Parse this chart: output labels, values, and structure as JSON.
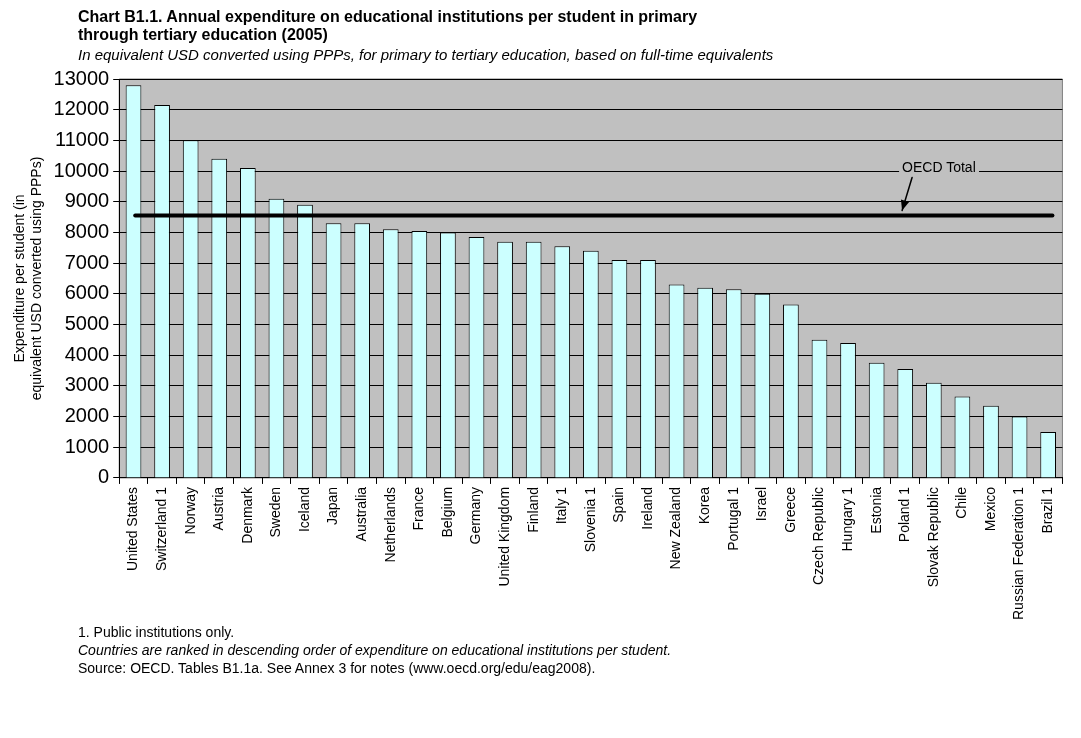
{
  "chart_data": {
    "type": "bar",
    "title": "Chart B1.1. Annual expenditure on educational institutions per student in primary through tertiary education (2005)",
    "subtitle": "In equivalent USD converted using PPPs, for primary to tertiary education, based on full-time equivalents",
    "ylabel": "Expenditure per student (in equivalent USD converted using PPPs)",
    "categories": [
      "United States",
      "Switzerland 1",
      "Norway",
      "Austria",
      "Denmark",
      "Sweden",
      "Iceland",
      "Japan",
      "Australia",
      "Netherlands",
      "France",
      "Belgium",
      "Germany",
      "United Kingdom",
      "Finland",
      "Italy 1",
      "Slovenia 1",
      "Spain",
      "Ireland",
      "New Zealand",
      "Korea",
      "Portugal 1",
      "Israel",
      "Greece",
      "Czech Republic",
      "Hungary 1",
      "Estonia",
      "Poland 1",
      "Slovak Republic",
      "Chile",
      "Mexico",
      "Russian Federation 1",
      "Brazil 1"
    ],
    "values": [
      12800,
      12150,
      11000,
      10400,
      10100,
      9100,
      8900,
      8300,
      8300,
      8100,
      8050,
      8000,
      7850,
      7700,
      7700,
      7550,
      7400,
      7100,
      7100,
      6300,
      6200,
      6150,
      6000,
      5650,
      4500,
      4400,
      3750,
      3550,
      3100,
      2650,
      2350,
      2000,
      1500
    ],
    "color": "#ccffff",
    "ylim": [
      0,
      13000
    ],
    "yticks": [
      0,
      1000,
      2000,
      3000,
      4000,
      5000,
      6000,
      7000,
      8000,
      9000,
      10000,
      11000,
      12000,
      13000
    ],
    "grid": "y",
    "legend": false,
    "ref_lines": [
      {
        "axis": "y",
        "value": 8550,
        "label": "OECD Total",
        "color": "#000000"
      }
    ],
    "annotations": [
      "1. Public institutions only.",
      "Countries are ranked in descending order of expenditure on educational institutions per student.",
      "Source: OECD. Tables B1.1a. See Annex 3 for notes (www.oecd.org/edu/eag2008)."
    ]
  }
}
